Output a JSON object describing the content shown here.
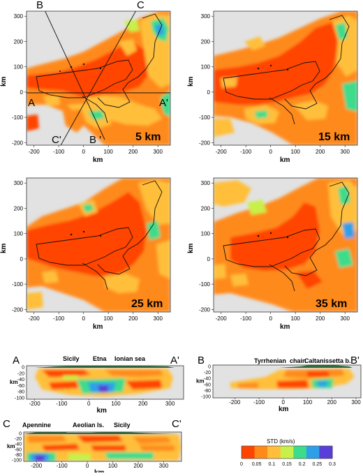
{
  "maps": [
    {
      "depth_label": "5 km",
      "xlabel": "km",
      "ylabel": "km"
    },
    {
      "depth_label": "15 km",
      "xlabel": "km",
      "ylabel": "km"
    },
    {
      "depth_label": "25 km",
      "xlabel": "km",
      "ylabel": "km"
    },
    {
      "depth_label": "35 km",
      "xlabel": "km",
      "ylabel": "km"
    }
  ],
  "map_xticks": [
    "-200",
    "-100",
    "0",
    "100",
    "200",
    "300"
  ],
  "map_yticks": [
    "300",
    "200",
    "100",
    "0",
    "-100",
    "-200"
  ],
  "profile_markers": {
    "a": "A",
    "a_prime": "A'",
    "b": "B",
    "b_prime": "B '",
    "c": "C",
    "c_prime": "C'"
  },
  "sections": [
    {
      "start": "A",
      "end": "A'",
      "places": [
        "Sicily",
        "Etna",
        "Ionian sea"
      ],
      "xticks": [
        "-200",
        "-100",
        "0",
        "100",
        "200",
        "300"
      ],
      "yticks": [
        "0",
        "-20",
        "-40",
        "-60",
        "-80",
        "-100"
      ],
      "xlabel": "km",
      "ylabel": "km"
    },
    {
      "start": "B",
      "end": "B'",
      "places": [
        "Tyrrhenian",
        "chain",
        "Caltanissetta b."
      ],
      "xticks": [
        "-200",
        "-100",
        "0",
        "100",
        "200",
        "300"
      ],
      "yticks": [
        "0",
        "-20",
        "-40",
        "-60",
        "-80",
        "-100"
      ],
      "xlabel": "km",
      "ylabel": "km"
    },
    {
      "start": "C",
      "end": "C'",
      "places": [
        "Apennine",
        "Aeolian Is.",
        "Sicily"
      ],
      "xticks": [
        "-200",
        "-100",
        "0",
        "100",
        "200",
        "300"
      ],
      "yticks": [
        "0",
        "-20",
        "-40",
        "-60",
        "-80",
        "-100"
      ],
      "xlabel": "km",
      "ylabel": "km"
    }
  ],
  "legend": {
    "title": "STD (km/s)",
    "ticks": [
      "0",
      "0.05",
      "0.1",
      "0.15",
      "0.2",
      "0.25",
      "0.3"
    ],
    "colors": [
      "#ff4400",
      "#ff8a1a",
      "#ffbf3a",
      "#c8f04a",
      "#3cdc8c",
      "#2fa0e8",
      "#5a3ed8"
    ]
  },
  "colors": {
    "land_gray": "#e2e2e2",
    "low_std": "#ff4400",
    "mid_std": "#ffbf3a",
    "high_std": "#2fa0e8",
    "topography": "#2e6b3a"
  }
}
